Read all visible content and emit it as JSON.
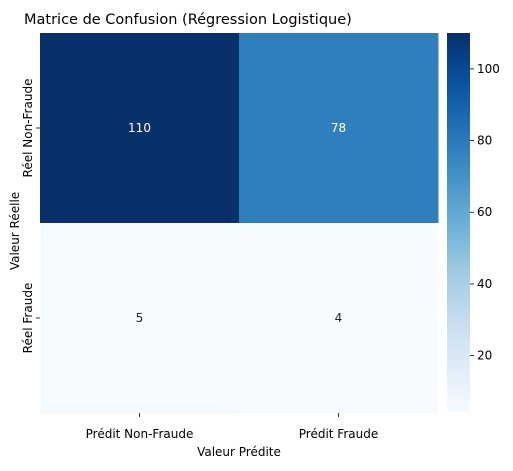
{
  "chart_data": {
    "type": "heatmap",
    "title": "Matrice de Confusion (Régression Logistique)",
    "xlabel": "Valeur Prédite",
    "ylabel": "Valeur Réelle",
    "x_categories": [
      "Prédit Non-Fraude",
      "Prédit Fraude"
    ],
    "y_categories": [
      "Réel Non-Fraude",
      "Réel Fraude"
    ],
    "values": [
      [
        110,
        78
      ],
      [
        5,
        4
      ]
    ],
    "colormap": "Blues",
    "vmin": 4,
    "vmax": 110,
    "colorbar_ticks": [
      "20",
      "40",
      "60",
      "80",
      "100"
    ],
    "annotation_colors": {
      "on_dark": "#ffffff",
      "on_light": "#262626"
    }
  }
}
